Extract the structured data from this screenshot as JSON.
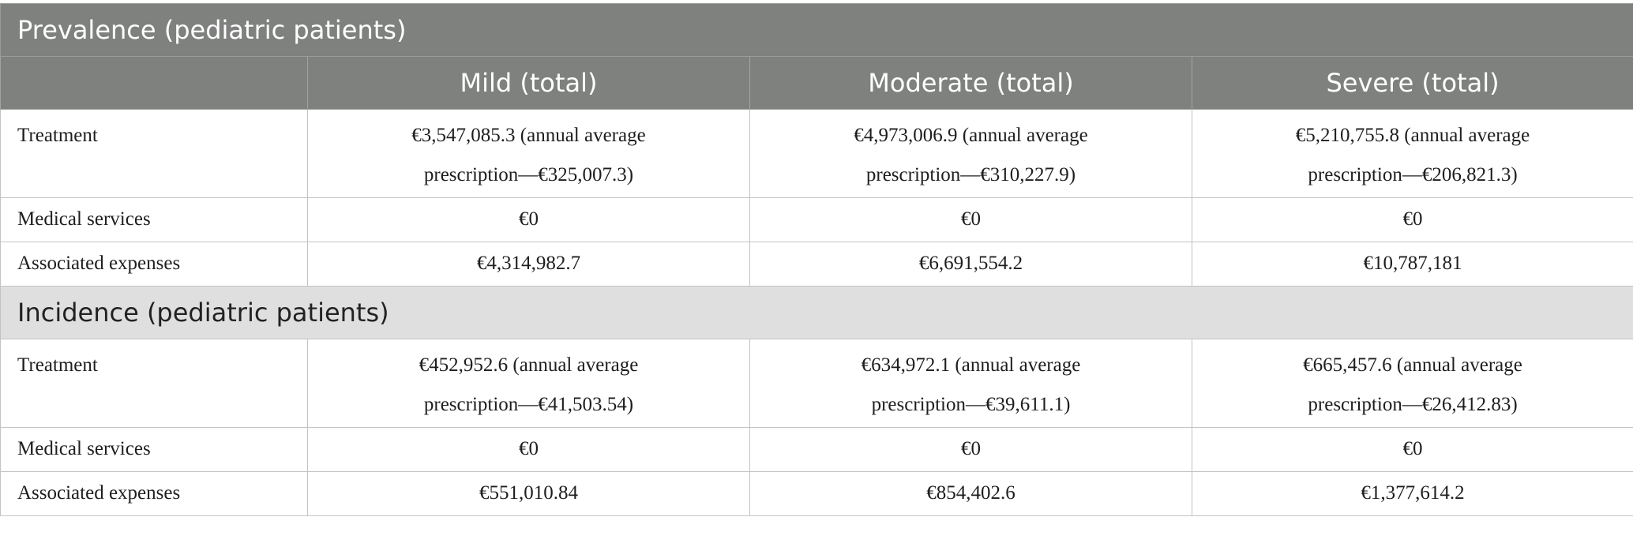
{
  "columns": [
    "",
    "Mild (total)",
    "Moderate (total)",
    "Severe (total)"
  ],
  "sections": [
    {
      "title": "Prevalence (pediatric patients)",
      "rows": [
        {
          "label": "Treatment",
          "cells": [
            [
              "€3,547,085.3 (annual average",
              "prescription—€325,007.3)"
            ],
            [
              "€4,973,006.9 (annual average",
              "prescription—€310,227.9)"
            ],
            [
              "€5,210,755.8 (annual average",
              "prescription—€206,821.3)"
            ]
          ]
        },
        {
          "label": "Medical services",
          "cells": [
            [
              "€0"
            ],
            [
              "€0"
            ],
            [
              "€0"
            ]
          ]
        },
        {
          "label": "Associated expenses",
          "cells": [
            [
              "€4,314,982.7"
            ],
            [
              "€6,691,554.2"
            ],
            [
              "€10,787,181"
            ]
          ]
        }
      ]
    },
    {
      "title": "Incidence (pediatric patients)",
      "rows": [
        {
          "label": "Treatment",
          "cells": [
            [
              "€452,952.6 (annual average",
              "prescription—€41,503.54)"
            ],
            [
              "€634,972.1 (annual average",
              "prescription—€39,611.1)"
            ],
            [
              "€665,457.6 (annual average",
              "prescription—€26,412.83)"
            ]
          ]
        },
        {
          "label": "Medical services",
          "cells": [
            [
              "€0"
            ],
            [
              "€0"
            ],
            [
              "€0"
            ]
          ]
        },
        {
          "label": "Associated expenses",
          "cells": [
            [
              "€551,010.84"
            ],
            [
              "€854,402.6"
            ],
            [
              "€1,377,614.2"
            ]
          ]
        }
      ]
    }
  ]
}
